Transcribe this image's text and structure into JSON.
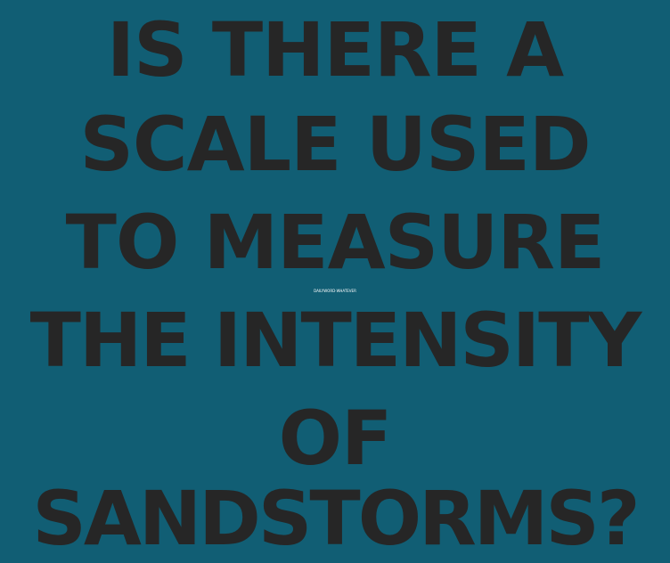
{
  "headline": {
    "lines": [
      "IS THERE A",
      "SCALE USED",
      "TO MEASURE",
      "THE INTENSITY",
      "OF",
      "SANDSTORMS?"
    ]
  },
  "watermark": "DAILYWORD·WHATEVER",
  "colors": {
    "background": "#115e74",
    "text": "#262626"
  }
}
